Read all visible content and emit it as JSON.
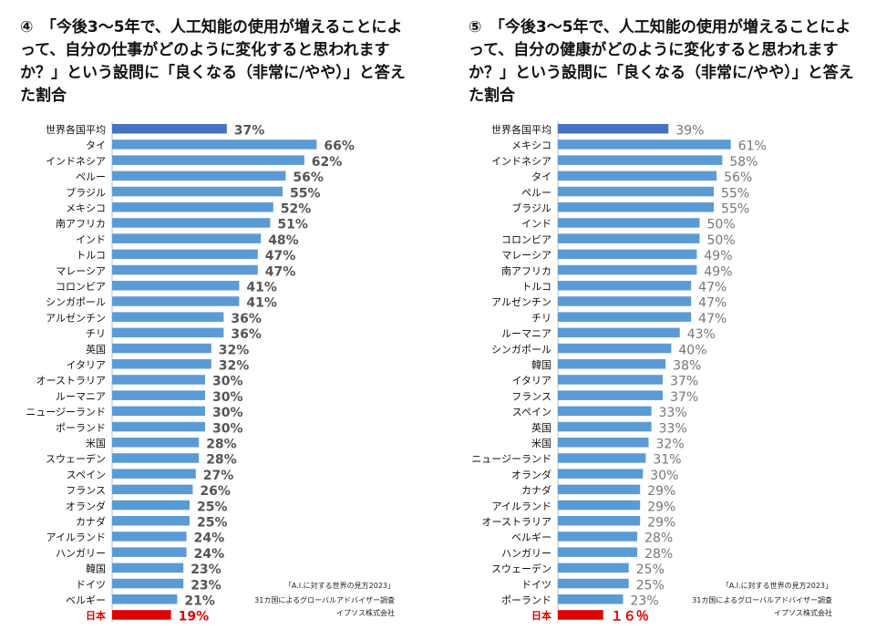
{
  "chart_data": [
    {
      "type": "bar",
      "orientation": "horizontal",
      "title": "④　「今後3～5年で、人工知能の使用が増えることによって、自分の仕事がどのように変化すると思われますか？」という設問に「良くなる（非常に/やや）」と答えた割合",
      "value_suffix": "%",
      "categories": [
        "世界各国平均",
        "タイ",
        "インドネシア",
        "ペルー",
        "ブラジル",
        "メキシコ",
        "南アフリカ",
        "インド",
        "トルコ",
        "マレーシア",
        "コロンビア",
        "シンガポール",
        "アルゼンチン",
        "チリ",
        "英国",
        "イタリア",
        "オーストラリア",
        "ルーマニア",
        "ニュージーランド",
        "ポーランド",
        "米国",
        "スウェーデン",
        "スペイン",
        "フランス",
        "オランダ",
        "カナダ",
        "アイルランド",
        "ハンガリー",
        "韓国",
        "ドイツ",
        "ベルギー",
        "日本"
      ],
      "values": [
        37,
        66,
        62,
        56,
        55,
        52,
        51,
        48,
        47,
        47,
        41,
        41,
        36,
        36,
        32,
        32,
        30,
        30,
        30,
        30,
        28,
        28,
        27,
        26,
        25,
        25,
        24,
        24,
        23,
        23,
        21,
        19
      ],
      "value_labels": [
        "37%",
        "66%",
        "62%",
        "56%",
        "55%",
        "52%",
        "51%",
        "48%",
        "47%",
        "47%",
        "41%",
        "41%",
        "36%",
        "36%",
        "32%",
        "32%",
        "30%",
        "30%",
        "30%",
        "30%",
        "28%",
        "28%",
        "27%",
        "26%",
        "25%",
        "25%",
        "24%",
        "24%",
        "23%",
        "23%",
        "21%",
        "19%"
      ],
      "source": [
        "「A.I.に対する世界の見方2023」",
        "31カ国によるグローバルアドバイザー調査",
        "イプソス株式会社"
      ],
      "colors": {
        "average": "#4472c4",
        "bar": "#5b9bd5",
        "japan": "#e00000",
        "value_text": "#555555",
        "japan_text": "#e00000"
      }
    },
    {
      "type": "bar",
      "orientation": "horizontal",
      "title": "⑤　「今後3～5年で、人工知能の使用が増えることによって、自分の健康がどのように変化すると思われますか？」という設問に「良くなる（非常に/やや）」と答えた割合",
      "value_suffix": "%",
      "categories": [
        "世界各国平均",
        "メキシコ",
        "インドネシア",
        "タイ",
        "ペルー",
        "ブラジル",
        "インド",
        "コロンビア",
        "マレーシア",
        "南アフリカ",
        "トルコ",
        "アルゼンチン",
        "チリ",
        "ルーマニア",
        "シンガポール",
        "韓国",
        "イタリア",
        "フランス",
        "スペイン",
        "英国",
        "米国",
        "ニュージーランド",
        "オランダ",
        "カナダ",
        "アイルランド",
        "オーストラリア",
        "ベルギー",
        "ハンガリー",
        "スウェーデン",
        "ドイツ",
        "ポーランド",
        "日本"
      ],
      "values": [
        39,
        61,
        58,
        56,
        55,
        55,
        50,
        50,
        49,
        49,
        47,
        47,
        47,
        43,
        40,
        38,
        37,
        37,
        33,
        33,
        32,
        31,
        30,
        29,
        29,
        29,
        28,
        28,
        25,
        25,
        23,
        16
      ],
      "value_labels": [
        "39%",
        "61%",
        "58%",
        "56%",
        "55%",
        "55%",
        "50%",
        "50%",
        "49%",
        "49%",
        "47%",
        "47%",
        "47%",
        "43%",
        "40%",
        "38%",
        "37%",
        "37%",
        "33%",
        "33%",
        "32%",
        "31%",
        "30%",
        "29%",
        "29%",
        "29%",
        "28%",
        "28%",
        "25%",
        "25%",
        "23%",
        "１６％"
      ],
      "source": [
        "「A.I.に対する世界の見方2023」",
        "31カ国によるグローバルアドバイザー調査",
        "イプソス株式会社"
      ],
      "colors": {
        "average": "#4472c4",
        "bar": "#5b9bd5",
        "japan": "#e00000",
        "value_text": "#777777",
        "japan_text": "#e00000"
      }
    }
  ]
}
